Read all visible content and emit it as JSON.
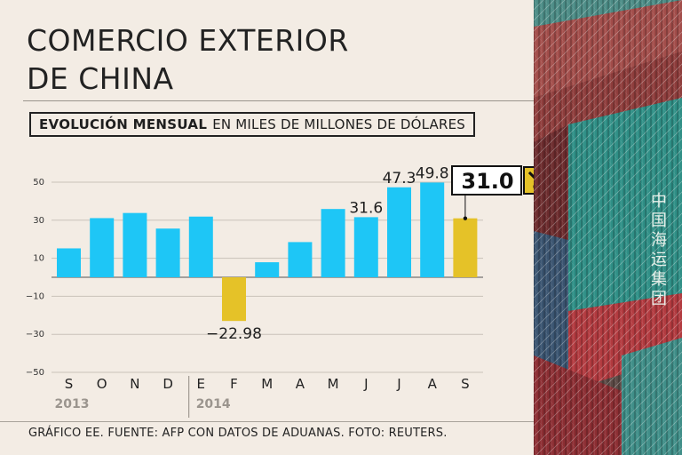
{
  "title": {
    "line1": "COMERCIO EXTERIOR",
    "line2": "DE CHINA"
  },
  "subtitle": {
    "strong": "EVOLUCIÓN MENSUAL",
    "light": "EN MILES DE MILLONES DE DÓLARES"
  },
  "footer": "GRÁFICO EE. FUENTE: AFP CON DATOS DE ADUANAS. FOTO: REUTERS.",
  "photo_chars": [
    "中",
    "国",
    "海",
    "运",
    "集",
    "团"
  ],
  "colors": {
    "bar": "#1ec6f6",
    "highlight": "#e5c228",
    "background": "#f3ece4",
    "callout_arrow_bg": "#e5c228"
  },
  "chart_data": {
    "type": "bar",
    "categories": [
      "S",
      "O",
      "N",
      "D",
      "E",
      "F",
      "M",
      "A",
      "M",
      "J",
      "J",
      "A",
      "S"
    ],
    "values": [
      15.2,
      31.1,
      33.8,
      25.6,
      31.9,
      -22.98,
      7.9,
      18.5,
      35.9,
      31.6,
      47.3,
      49.8,
      31.0
    ],
    "highlight_indices": [
      5,
      12
    ],
    "data_labels": [
      {
        "index": 5,
        "text": "−22.98"
      },
      {
        "index": 9,
        "text": "31.6"
      },
      {
        "index": 10,
        "text": "47.3"
      },
      {
        "index": 11,
        "text": "49.8"
      }
    ],
    "callout": {
      "index": 12,
      "text": "31.0",
      "icon": "arrow-down-right-icon"
    },
    "year_groups": [
      {
        "label": "2013",
        "start": 0,
        "end": 3
      },
      {
        "label": "2014",
        "start": 4,
        "end": 12
      }
    ],
    "yticks": [
      50,
      30,
      10,
      -10,
      -30,
      -50
    ],
    "ylim": [
      -50,
      50
    ],
    "grid": true
  }
}
